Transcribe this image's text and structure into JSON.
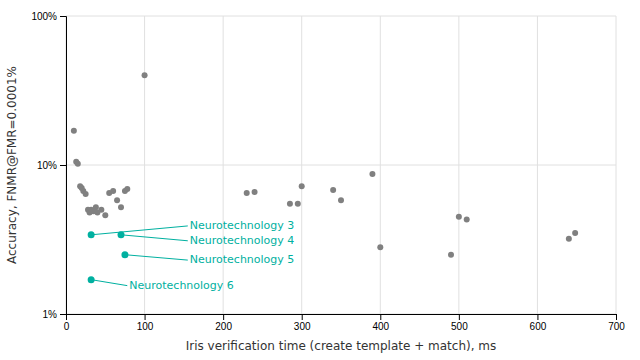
{
  "chart_data": {
    "type": "scatter",
    "xlabel": "Iris verification time (create template + match), ms",
    "ylabel": "Accuracy, FNMR@FMR=0.0001%",
    "log": "y",
    "grid": true,
    "xlim": [
      0,
      700
    ],
    "ylim": [
      1,
      100
    ],
    "xticks": [
      0,
      100,
      200,
      300,
      400,
      500,
      600,
      700
    ],
    "yticks": [
      {
        "value": 1,
        "label": "1%"
      },
      {
        "value": 10,
        "label": "10%"
      },
      {
        "value": 100,
        "label": "100%"
      }
    ],
    "series": [
      {
        "color": "#808080",
        "x": [
          10,
          13,
          15,
          18,
          20,
          22,
          25,
          28,
          30,
          32,
          35,
          38,
          40,
          45,
          50,
          55,
          60,
          65,
          70,
          75,
          78,
          100,
          230,
          240,
          285,
          295,
          300,
          340,
          350,
          390,
          400,
          490,
          500,
          510,
          640,
          648
        ],
        "values": [
          17,
          10.5,
          10.2,
          7.2,
          7.0,
          6.7,
          6.4,
          5.0,
          4.8,
          5.0,
          4.9,
          5.2,
          4.8,
          5.0,
          4.6,
          6.5,
          6.7,
          5.8,
          5.2,
          6.7,
          6.9,
          40,
          6.5,
          6.6,
          5.5,
          5.5,
          7.2,
          6.8,
          5.8,
          8.7,
          2.8,
          2.5,
          4.5,
          4.3,
          3.2,
          3.5
        ]
      },
      {
        "color": "#00b0a0",
        "x": [
          32,
          70,
          75,
          32
        ],
        "values": [
          3.4,
          3.4,
          2.5,
          1.7
        ]
      }
    ],
    "annotations": [
      {
        "text": "Neurotechnology 3",
        "x": 32,
        "y": 3.4,
        "label_x": 155,
        "label_y": 3.9,
        "color": "#00b0a0"
      },
      {
        "text": "Neurotechnology 4",
        "x": 70,
        "y": 3.4,
        "label_x": 155,
        "label_y": 3.1,
        "color": "#00b0a0"
      },
      {
        "text": "Neurotechnology 5",
        "x": 75,
        "y": 2.5,
        "label_x": 155,
        "label_y": 2.3,
        "color": "#00b0a0"
      },
      {
        "text": "Neurotechnology 6",
        "x": 32,
        "y": 1.7,
        "label_x": 78,
        "label_y": 1.55,
        "color": "#00b0a0"
      }
    ]
  }
}
